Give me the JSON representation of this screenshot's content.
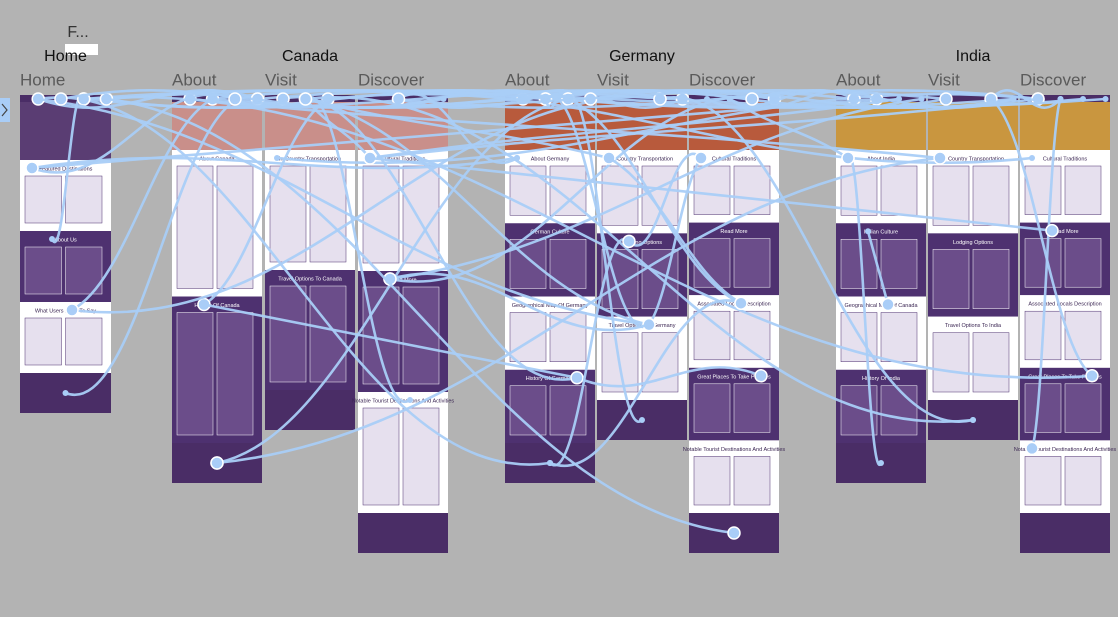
{
  "tool_label": "F...",
  "groups": [
    {
      "name": "Home",
      "frames": [
        {
          "label": "Home",
          "sections": [
            "Featured Destinations",
            "About Us",
            "What Users Have To Say"
          ]
        }
      ]
    },
    {
      "name": "Canada",
      "frames": [
        {
          "label": "About",
          "sections": [
            "About Canada",
            "History Of Canada"
          ]
        },
        {
          "label": "Visit",
          "sections": [
            "In Country Transportation",
            "Travel Options To Canada"
          ]
        },
        {
          "label": "Discover",
          "sections": [
            "Cultural Traditions",
            "Read More",
            "Notable Tourist Destinations And Activities"
          ]
        }
      ]
    },
    {
      "name": "Germany",
      "frames": [
        {
          "label": "About",
          "sections": [
            "About Germany",
            "German Culture",
            "Geographical Map Of Germany",
            "History Of Germany"
          ]
        },
        {
          "label": "Visit",
          "sections": [
            "In Country Transportation",
            "Lodging Options",
            "Travel Options To Germany"
          ]
        },
        {
          "label": "Discover",
          "sections": [
            "Cultural Traditions",
            "Read More",
            "Associated Locals Description",
            "Great Places To Take Pictures",
            "Notable Tourist Destinations And Activities"
          ]
        }
      ]
    },
    {
      "name": "India",
      "frames": [
        {
          "label": "About",
          "sections": [
            "About India",
            "Indian Culture",
            "Geographical Map Of Canada",
            "History Of India"
          ]
        },
        {
          "label": "Visit",
          "sections": [
            "In Country Transportation",
            "Lodging Options",
            "Travel Options To India"
          ]
        },
        {
          "label": "Discover",
          "sections": [
            "Cultural Traditions",
            "Read More",
            "Associated Locals Description",
            "Great Places To Take Pictures",
            "Notable Tourist Destinations And Activities"
          ]
        }
      ]
    }
  ]
}
